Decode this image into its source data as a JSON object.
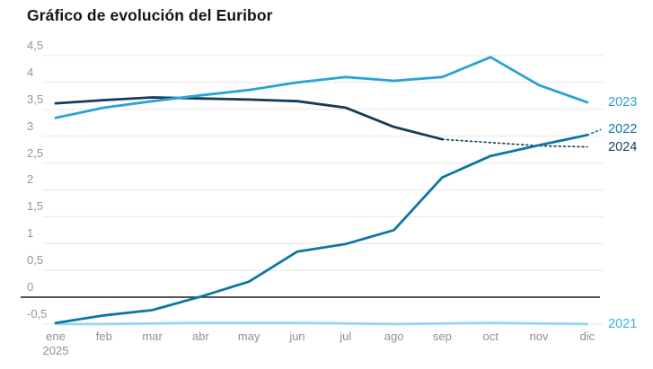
{
  "chart_data": {
    "type": "line",
    "title": "Gráfico de evolución del Euribor",
    "x_categories": [
      "ene",
      "feb",
      "mar",
      "abr",
      "may",
      "jun",
      "jul",
      "ago",
      "sep",
      "oct",
      "nov",
      "dic"
    ],
    "x_first_tick_year": "2025",
    "y_ticks": [
      {
        "value": 4.5,
        "label": "4,5"
      },
      {
        "value": 4,
        "label": "4"
      },
      {
        "value": 3.5,
        "label": "3,5"
      },
      {
        "value": 3,
        "label": "3"
      },
      {
        "value": 2.5,
        "label": "2,5"
      },
      {
        "value": 2,
        "label": "2"
      },
      {
        "value": 1.5,
        "label": "1,5"
      },
      {
        "value": 1,
        "label": "1"
      },
      {
        "value": 0.5,
        "label": "0,5"
      },
      {
        "value": 0,
        "label": "0"
      },
      {
        "value": -0.5,
        "label": "-0,5"
      }
    ],
    "ylim": [
      -0.75,
      4.75
    ],
    "grid_on": true,
    "grid_color": "#e7e7e7",
    "zero_axis_color": "#1c1c1c",
    "axis_text_color": "#949494",
    "legend_position": "right-of-line-end",
    "series": [
      {
        "name": "2021",
        "color": "#8ed9f4",
        "label_color": "#38b1e0",
        "style": "solid",
        "values": [
          -0.5,
          -0.5,
          -0.49,
          -0.48,
          -0.48,
          -0.48,
          -0.49,
          -0.5,
          -0.49,
          -0.48,
          -0.49,
          -0.5
        ],
        "label_value": -0.5
      },
      {
        "name": "2022",
        "color": "#0e76a4",
        "label_color": "#0e76a4",
        "style": "solid-with-dotted-tail",
        "values": [
          -0.48,
          -0.34,
          -0.24,
          0.01,
          0.29,
          0.85,
          0.99,
          1.25,
          2.23,
          2.63,
          2.83,
          3.02
        ],
        "tail_value": 3.12,
        "label_value": 3.12
      },
      {
        "name": "2023",
        "color": "#2aa3d3",
        "label_color": "#2aa3d3",
        "style": "solid",
        "values": [
          3.34,
          3.53,
          3.65,
          3.76,
          3.86,
          4.0,
          4.1,
          4.03,
          4.1,
          4.47,
          3.95,
          3.63
        ],
        "label_value": 3.63
      },
      {
        "name": "2024",
        "color": "#143d5b",
        "label_color": "#143d5b",
        "style": "solid-then-dotted",
        "values": [
          3.61,
          3.67,
          3.72,
          3.7,
          3.68,
          3.65,
          3.53,
          3.17,
          2.94,
          2.88,
          2.82,
          2.8
        ],
        "dashed_from_index": 8,
        "label_value": 2.8
      }
    ]
  }
}
